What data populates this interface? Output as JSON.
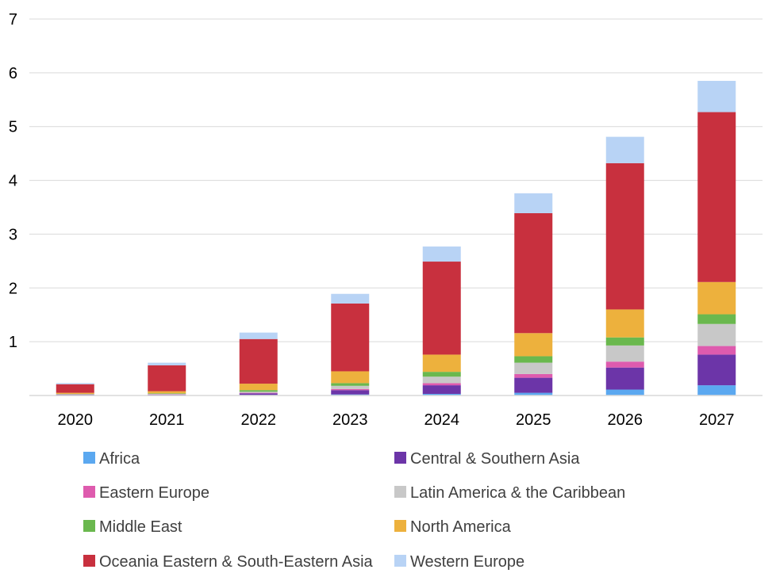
{
  "chart_data": {
    "type": "bar",
    "stacked": true,
    "categories": [
      "2020",
      "2021",
      "2022",
      "2023",
      "2024",
      "2025",
      "2026",
      "2027"
    ],
    "ylim": [
      0,
      7
    ],
    "yticks": [
      "",
      "1",
      "2",
      "3",
      "4",
      "5",
      "6",
      "7"
    ],
    "grid": true,
    "legend_position": "bottom",
    "series": [
      {
        "name": "Africa",
        "color": "#5BA8F0",
        "values": [
          0.005,
          0.005,
          0.01,
          0.02,
          0.03,
          0.05,
          0.11,
          0.19
        ]
      },
      {
        "name": "Central & Southern Asia",
        "color": "#6C35A8",
        "values": [
          0.01,
          0.01,
          0.03,
          0.08,
          0.16,
          0.28,
          0.41,
          0.57
        ]
      },
      {
        "name": "Eastern Europe",
        "color": "#DE5BAE",
        "values": [
          0.005,
          0.005,
          0.01,
          0.02,
          0.04,
          0.07,
          0.11,
          0.16
        ]
      },
      {
        "name": "Latin America & the Caribbean",
        "color": "#C8C8C8",
        "values": [
          0.005,
          0.01,
          0.02,
          0.06,
          0.12,
          0.21,
          0.3,
          0.41
        ]
      },
      {
        "name": "Middle East",
        "color": "#6AB84E",
        "values": [
          0.005,
          0.01,
          0.03,
          0.05,
          0.09,
          0.12,
          0.15,
          0.18
        ]
      },
      {
        "name": "North America",
        "color": "#EDB13D",
        "values": [
          0.02,
          0.04,
          0.12,
          0.22,
          0.32,
          0.43,
          0.52,
          0.6
        ]
      },
      {
        "name": "Oceania Eastern & South-Eastern Asia",
        "color": "#C8303E",
        "values": [
          0.16,
          0.48,
          0.83,
          1.26,
          1.73,
          2.23,
          2.72,
          3.16
        ]
      },
      {
        "name": "Western Europe",
        "color": "#B8D3F5",
        "values": [
          0.02,
          0.05,
          0.12,
          0.18,
          0.28,
          0.37,
          0.49,
          0.58
        ]
      }
    ]
  }
}
